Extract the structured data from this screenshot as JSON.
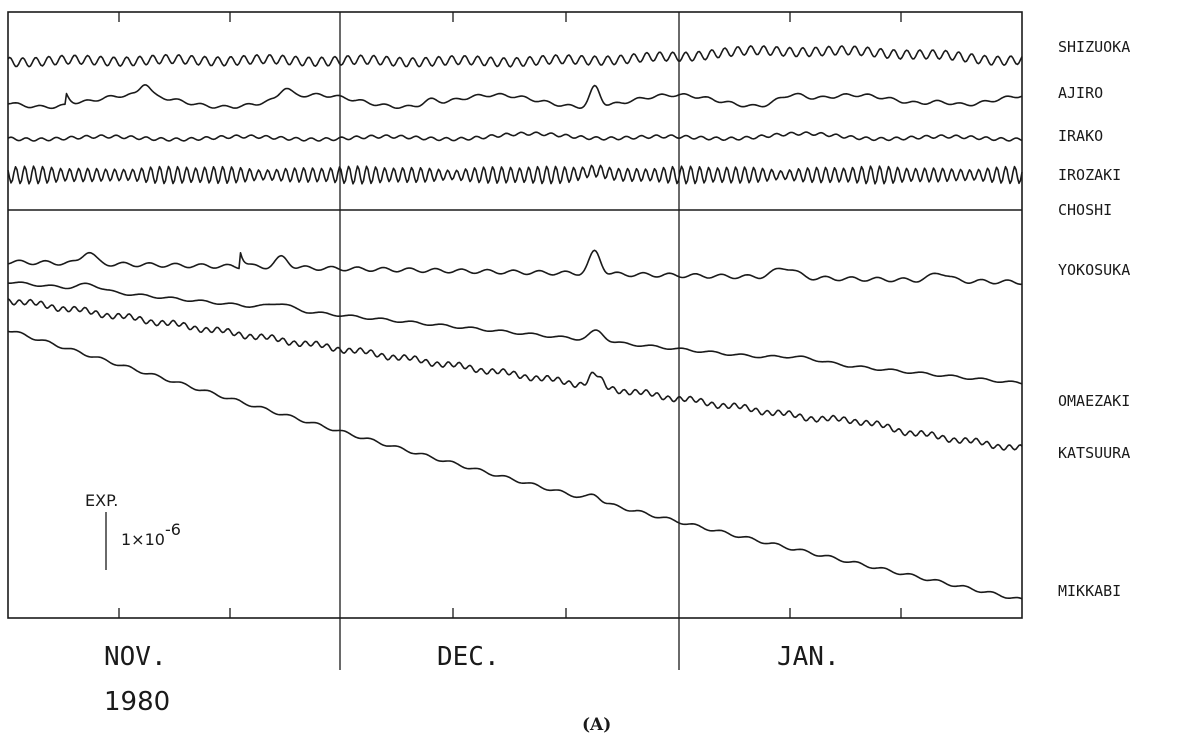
{
  "chart_data": {
    "type": "line",
    "panel_label": "(A)",
    "x_axis": {
      "months": [
        "NOV.",
        "DEC.",
        "JAN."
      ],
      "year": "1980",
      "range_days": [
        0,
        92
      ]
    },
    "scale_bar": {
      "label_top": "EXP.",
      "label_value": "1×10",
      "exponent": "-6",
      "value": 1e-06
    },
    "grid": "month boundaries only",
    "series": [
      {
        "name": "SHIZUOKA",
        "pattern": "tidal oscillation with slow drift",
        "notes": "level rises in January"
      },
      {
        "name": "AJIRO",
        "pattern": "smooth with periodic bumps",
        "notes": "step near early November; large peak mid-December"
      },
      {
        "name": "IRAKO",
        "pattern": "nearly flat, small oscillation"
      },
      {
        "name": "IROZAKI",
        "pattern": "strong tidal oscillation",
        "notes": "amplitude varies through period"
      },
      {
        "name": "CHOSHI",
        "pattern": "flat line"
      },
      {
        "name": "YOKOSUKA",
        "pattern": "flat with periodic bumps",
        "notes": "spike early November; peak mid-December"
      },
      {
        "name": "OMAEZAKI",
        "pattern": "slow decline with bumps"
      },
      {
        "name": "KATSUURA",
        "pattern": "decline with tidal noise"
      },
      {
        "name": "MIKKABI",
        "pattern": "steady strong decline (contraction)"
      }
    ]
  }
}
